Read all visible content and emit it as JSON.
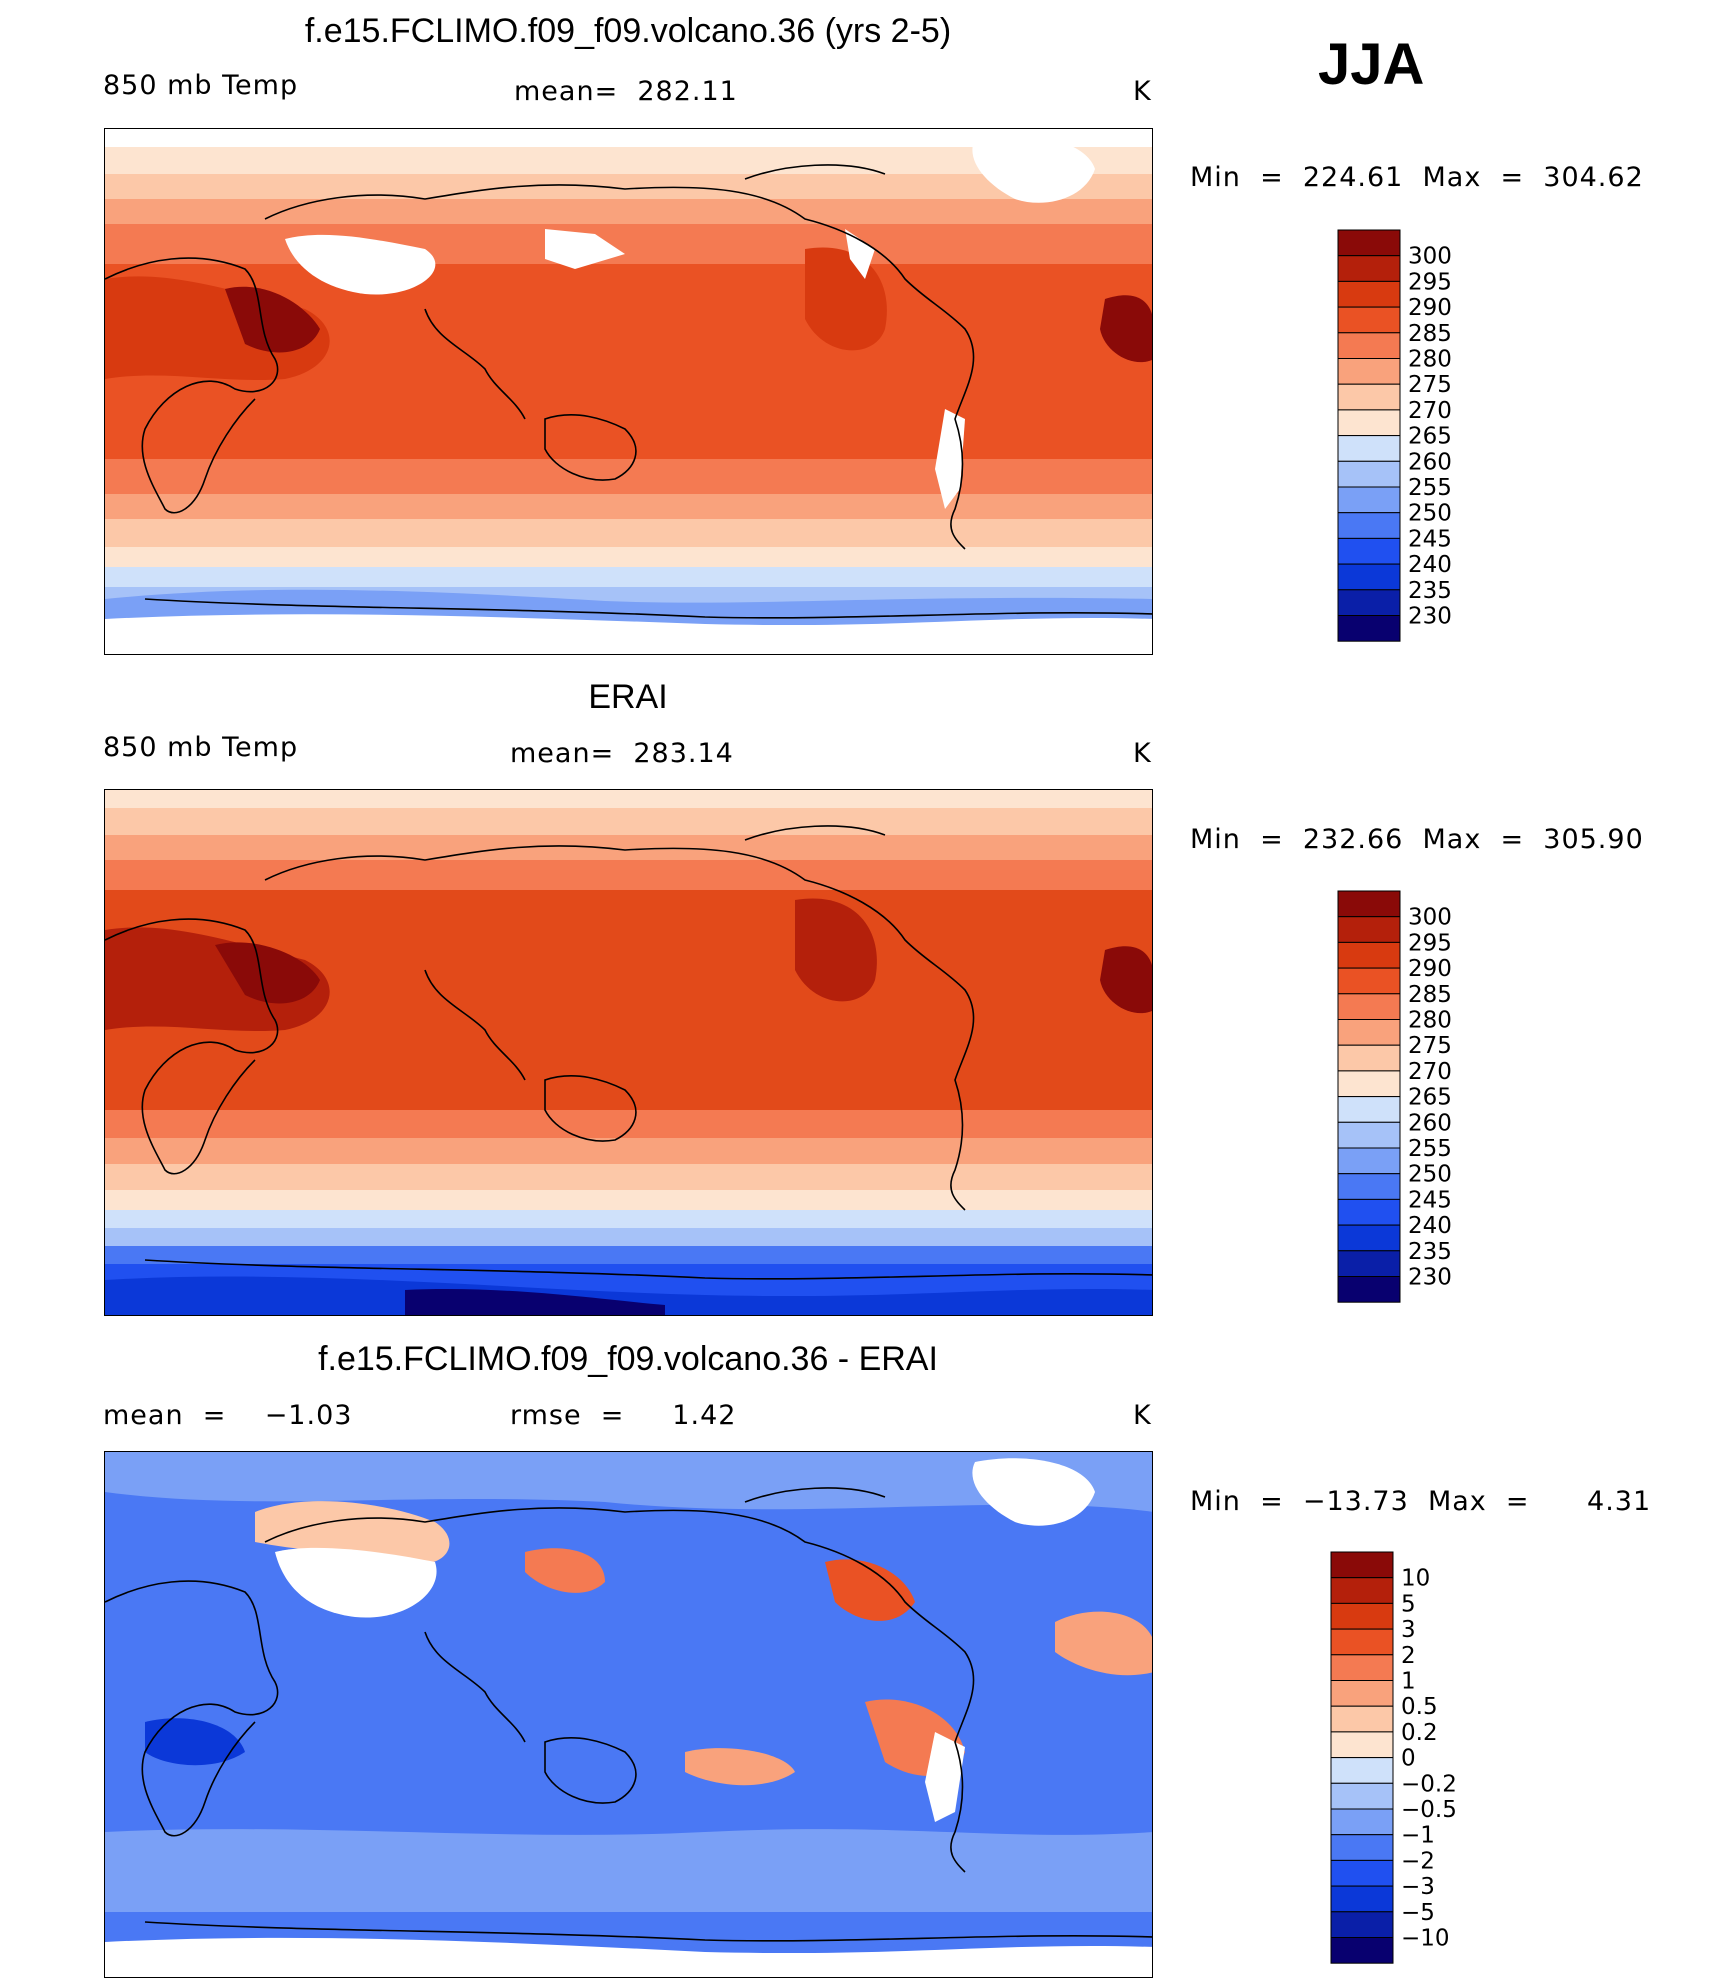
{
  "season": "JJA",
  "colors": {
    "abs_scale": [
      "#08006f",
      "#0a1fa8",
      "#0b38d8",
      "#2050f0",
      "#4a78f4",
      "#7aa0f6",
      "#a6c2f8",
      "#cfe1fa",
      "#fde4d0",
      "#fcc8a8",
      "#f9a27c",
      "#f47a52",
      "#ea5224",
      "#d83a10",
      "#b4200b",
      "#8a0a08"
    ],
    "diff_scale": [
      "#08006f",
      "#0a1fa8",
      "#0b38d8",
      "#2050f0",
      "#4a78f4",
      "#7aa0f6",
      "#a6c2f8",
      "#cfe1fa",
      "#fde4d0",
      "#fcc8a8",
      "#f9a27c",
      "#f47a52",
      "#ea5224",
      "#d83a10",
      "#b4200b",
      "#8a0a08"
    ]
  },
  "panels": [
    {
      "title": "f.e15.FCLIMO.f09_f09.volcano.36 (yrs 2-5)",
      "left_label": "850 mb Temp",
      "center_label": "mean=  282.11",
      "unit": "K",
      "minmax": "Min  =  224.61  Max  =  304.62",
      "colorbar_labels": [
        "300",
        "295",
        "290",
        "285",
        "280",
        "275",
        "270",
        "265",
        "260",
        "255",
        "250",
        "245",
        "240",
        "235",
        "230"
      ]
    },
    {
      "title": "ERAI",
      "left_label": "850 mb Temp",
      "center_label": "mean=  283.14",
      "unit": "K",
      "minmax": "Min  =  232.66  Max  =  305.90",
      "colorbar_labels": [
        "300",
        "295",
        "290",
        "285",
        "280",
        "275",
        "270",
        "265",
        "260",
        "255",
        "250",
        "245",
        "240",
        "235",
        "230"
      ]
    },
    {
      "title": "f.e15.FCLIMO.f09_f09.volcano.36 - ERAI",
      "left_label": "mean  =    −1.03",
      "center_label": "rmse  =     1.42",
      "unit": "K",
      "minmax": "Min  =  −13.73  Max  =      4.31",
      "colorbar_labels": [
        "10",
        "5",
        "3",
        "2",
        "1",
        "0.5",
        "0.2",
        "0",
        "−0.2",
        "−0.5",
        "−1",
        "−2",
        "−3",
        "−5",
        "−10"
      ]
    }
  ]
}
